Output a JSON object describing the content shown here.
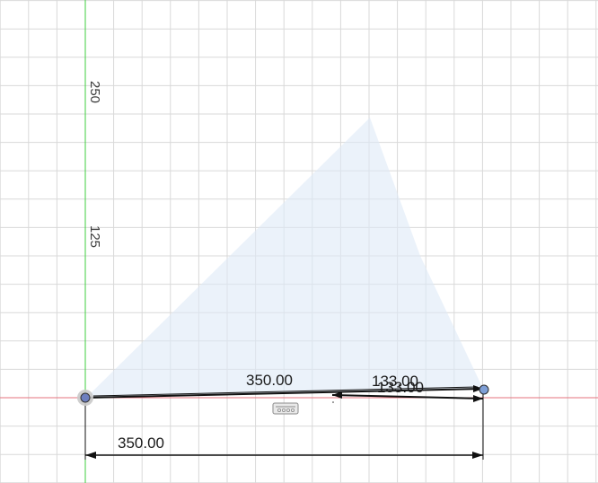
{
  "axis_labels": {
    "y_250": "250",
    "y_125": "125"
  },
  "dimensions": {
    "horizontal_overall": "350.00",
    "sloped_line": "350.00",
    "short_a": "133.00",
    "short_b": "133.00"
  },
  "colors": {
    "grid": "#d9d9d9",
    "x_axis": "#e5737d",
    "y_axis": "#3fcf3f",
    "fill": "#deeaf7",
    "line": "#111111",
    "point": "#7f9fd6"
  },
  "icons": {
    "constraint_glyph": "horizontal-constraint-icon"
  }
}
